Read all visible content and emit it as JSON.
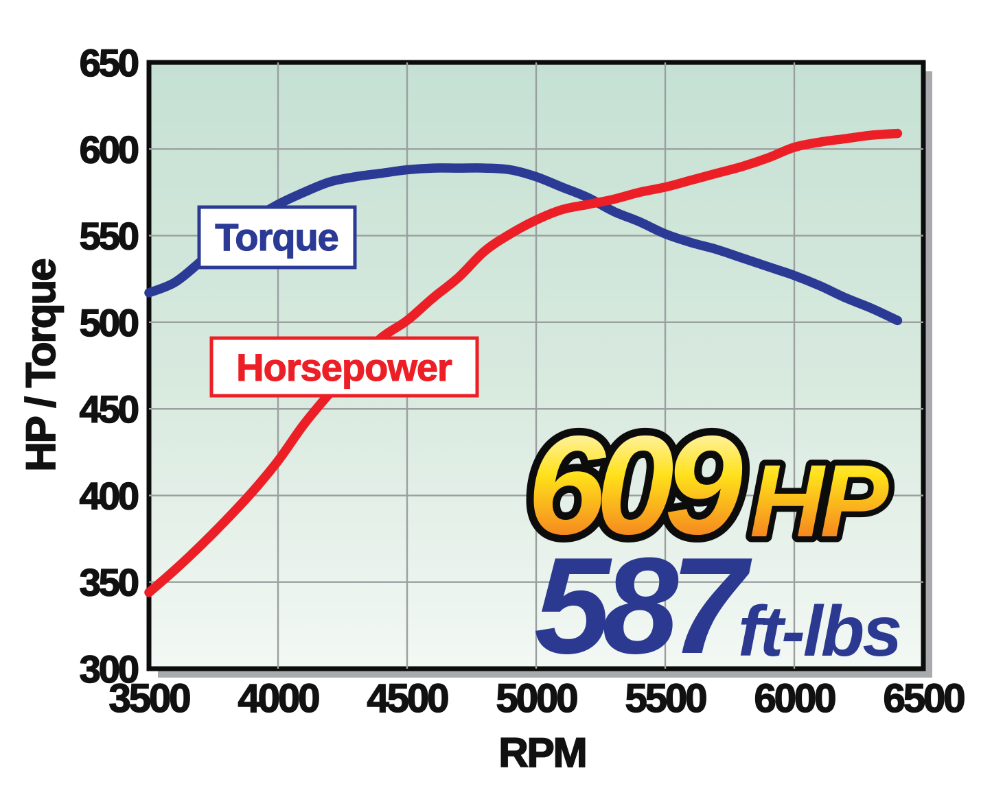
{
  "chart_data": {
    "type": "line",
    "xlabel": "RPM",
    "ylabel": "HP / Torque",
    "xlim": [
      3500,
      6500
    ],
    "ylim": [
      300,
      650
    ],
    "x_ticks": [
      3500,
      4000,
      4500,
      5000,
      5500,
      6000,
      6500
    ],
    "y_ticks": [
      650,
      600,
      550,
      500,
      450,
      400,
      350,
      300
    ],
    "grid": true,
    "legend_position": "inline-boxed-labels",
    "x": [
      3500,
      3600,
      3700,
      3800,
      3900,
      4000,
      4100,
      4200,
      4300,
      4400,
      4500,
      4600,
      4700,
      4800,
      4900,
      5000,
      5100,
      5200,
      5300,
      5400,
      5500,
      5600,
      5700,
      5800,
      5900,
      6000,
      6100,
      6200,
      6300,
      6400
    ],
    "series": [
      {
        "name": "Torque",
        "color": "#2b3a94",
        "values": [
          517,
          523,
          535,
          548,
          559,
          568,
          575,
          581,
          584,
          586,
          588,
          589,
          589,
          589,
          588,
          584,
          578,
          572,
          564,
          558,
          551,
          546,
          542,
          537,
          532,
          527,
          521,
          514,
          508,
          501
        ]
      },
      {
        "name": "Horsepower",
        "color": "#ed1f26",
        "values": [
          344,
          357,
          371,
          386,
          402,
          420,
          441,
          459,
          476,
          491,
          501,
          514,
          526,
          541,
          551,
          559,
          565,
          568,
          571,
          575,
          578,
          582,
          586,
          590,
          595,
          601,
          604,
          606,
          608,
          609
        ]
      }
    ]
  },
  "annotations": {
    "torque_label": "Torque",
    "horsepower_label": "Horsepower",
    "hp_value": "609",
    "hp_unit": "HP",
    "tq_value": "587",
    "tq_unit": "ft-lbs"
  },
  "colors": {
    "torque_curve": "#2b3a94",
    "horsepower_curve": "#ed1f26",
    "grid_line": "#9b9fa0",
    "plot_border": "#0c0c0c",
    "drop_shadow": "#a8aaad",
    "plot_bg_top": "#c5e1d3",
    "plot_bg_mid": "#d9eadf",
    "plot_bg_bottom": "#f3f8f4",
    "hp_gradient_top": "#fffce8",
    "hp_gradient_mid": "#ffe11a",
    "hp_gradient_bottom": "#f58220",
    "tq_text_color": "#2b3990",
    "axis_text": "#111111"
  }
}
